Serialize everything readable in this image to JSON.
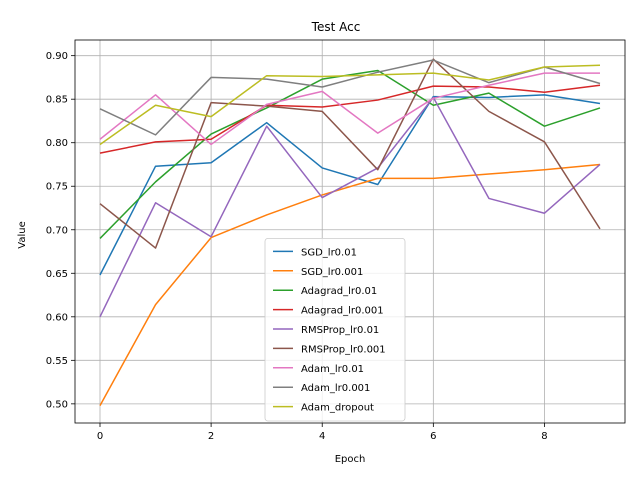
{
  "chart_data": {
    "type": "line",
    "title": "Test Acc",
    "xlabel": "Epoch",
    "ylabel": "Value",
    "xlim": [
      -0.45,
      9.45
    ],
    "ylim": [
      0.478,
      0.918
    ],
    "grid": true,
    "legend_position": "lower-center",
    "x": [
      0,
      1,
      2,
      3,
      4,
      5,
      6,
      7,
      8,
      9
    ],
    "x_ticks": [
      0,
      2,
      4,
      6,
      8
    ],
    "y_ticks": [
      0.5,
      0.55,
      0.6,
      0.65,
      0.7,
      0.75,
      0.8,
      0.85,
      0.9
    ],
    "series": [
      {
        "name": "SGD_lr0.01",
        "color": "#1f77b4",
        "values": [
          0.648,
          0.773,
          0.777,
          0.823,
          0.771,
          0.752,
          0.853,
          0.852,
          0.855,
          0.845
        ]
      },
      {
        "name": "SGD_lr0.001",
        "color": "#ff7f0e",
        "values": [
          0.498,
          0.614,
          0.691,
          0.717,
          0.74,
          0.759,
          0.759,
          0.764,
          0.769,
          0.775
        ]
      },
      {
        "name": "Adagrad_lr0.01",
        "color": "#2ca02c",
        "values": [
          0.69,
          0.755,
          0.81,
          0.84,
          0.873,
          0.883,
          0.843,
          0.857,
          0.819,
          0.84
        ]
      },
      {
        "name": "Adagrad_lr0.001",
        "color": "#d62728",
        "values": [
          0.788,
          0.801,
          0.804,
          0.843,
          0.841,
          0.849,
          0.865,
          0.864,
          0.858,
          0.866
        ]
      },
      {
        "name": "RMSProp_lr0.01",
        "color": "#9467bd",
        "values": [
          0.6,
          0.731,
          0.692,
          0.819,
          0.737,
          0.771,
          0.852,
          0.736,
          0.719,
          0.775
        ]
      },
      {
        "name": "RMSProp_lr0.001",
        "color": "#8c564b",
        "values": [
          0.73,
          0.679,
          0.846,
          0.842,
          0.836,
          0.769,
          0.896,
          0.836,
          0.801,
          0.701
        ]
      },
      {
        "name": "Adam_lr0.01",
        "color": "#e377c2",
        "values": [
          0.804,
          0.855,
          0.798,
          0.844,
          0.859,
          0.811,
          0.851,
          0.866,
          0.88,
          0.88
        ]
      },
      {
        "name": "Adam_lr0.001",
        "color": "#7f7f7f",
        "values": [
          0.839,
          0.809,
          0.875,
          0.873,
          0.864,
          0.881,
          0.895,
          0.869,
          0.887,
          0.868
        ]
      },
      {
        "name": "Adam_dropout",
        "color": "#bcbd22",
        "values": [
          0.798,
          0.843,
          0.83,
          0.877,
          0.876,
          0.878,
          0.88,
          0.872,
          0.887,
          0.889
        ]
      }
    ]
  }
}
